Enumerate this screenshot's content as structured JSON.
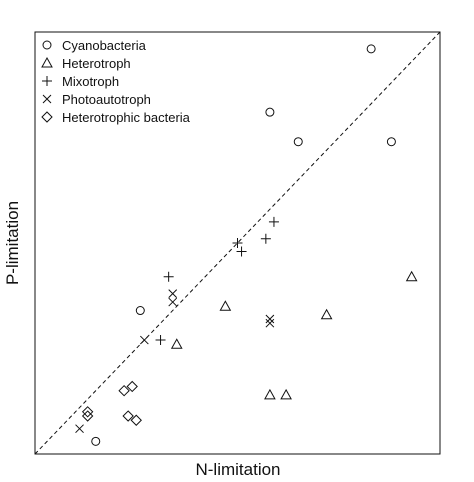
{
  "chart_data": {
    "type": "scatter",
    "xlabel": "N-limitation",
    "ylabel": "P-limitation",
    "xlim": [
      0,
      1
    ],
    "ylim": [
      0,
      1
    ],
    "axis_ticks": false,
    "reference_line": {
      "type": "identity",
      "style": "dashed"
    },
    "legend_position": "top-left",
    "series": [
      {
        "name": "Cyanobacteria",
        "marker": "circle",
        "points": [
          [
            0.15,
            0.03
          ],
          [
            0.26,
            0.34
          ],
          [
            0.58,
            0.81
          ],
          [
            0.65,
            0.74
          ],
          [
            0.83,
            0.96
          ],
          [
            0.88,
            0.74
          ]
        ]
      },
      {
        "name": "Heterotroph",
        "marker": "triangle",
        "points": [
          [
            0.35,
            0.26
          ],
          [
            0.47,
            0.35
          ],
          [
            0.58,
            0.14
          ],
          [
            0.62,
            0.14
          ],
          [
            0.72,
            0.33
          ],
          [
            0.93,
            0.42
          ]
        ]
      },
      {
        "name": "Mixotroph",
        "marker": "plus",
        "points": [
          [
            0.33,
            0.42
          ],
          [
            0.31,
            0.27
          ],
          [
            0.5,
            0.5
          ],
          [
            0.51,
            0.48
          ],
          [
            0.57,
            0.51
          ],
          [
            0.59,
            0.55
          ]
        ]
      },
      {
        "name": "Photoautotroph",
        "marker": "x",
        "points": [
          [
            0.11,
            0.06
          ],
          [
            0.27,
            0.27
          ],
          [
            0.34,
            0.38
          ],
          [
            0.34,
            0.36
          ],
          [
            0.58,
            0.31
          ],
          [
            0.58,
            0.32
          ]
        ]
      },
      {
        "name": "Heterotrophic bacteria",
        "marker": "diamond",
        "points": [
          [
            0.13,
            0.09
          ],
          [
            0.13,
            0.1
          ],
          [
            0.22,
            0.15
          ],
          [
            0.24,
            0.16
          ],
          [
            0.23,
            0.09
          ],
          [
            0.25,
            0.08
          ]
        ]
      }
    ]
  }
}
